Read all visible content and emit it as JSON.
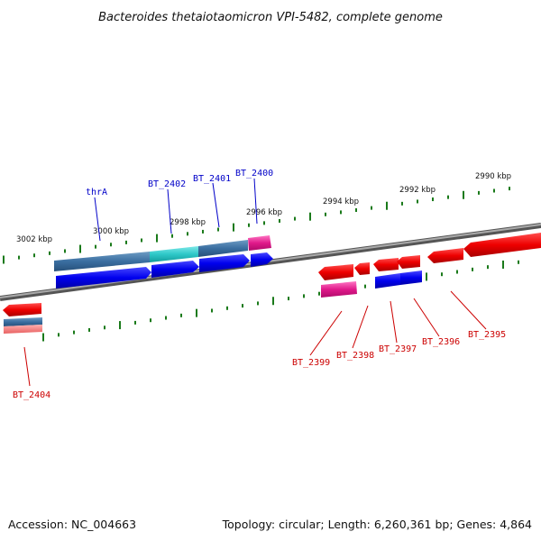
{
  "title": "Bacteroides thetaiotaomicron VPI-5482, complete genome",
  "footer": {
    "accession": "Accession: NC_004663",
    "topology": "Topology: circular; Length: 6,260,361 bp; Genes: 4,864"
  },
  "scale_labels": [
    "3002 kbp",
    "3000 kbp",
    "2998 kbp",
    "2996 kbp",
    "2994 kbp",
    "2992 kbp",
    "2990 kbp"
  ],
  "gene_labels_top": [
    "thrA",
    "BT_2402",
    "BT_2401",
    "BT_2400"
  ],
  "gene_labels_bottom": [
    "BT_2404",
    "BT_2399",
    "BT_2398",
    "BT_2397",
    "BT_2396",
    "BT_2395"
  ],
  "colors": {
    "forward_gene": "#0000ee",
    "forward_cds_highlight": "#2ec8c8",
    "forward_cds": "#3a6ea0",
    "reverse_gene": "#ee0000",
    "reverse_cds": "#e0198a",
    "backbone": "#888888",
    "tick": "#1a7a1a"
  }
}
